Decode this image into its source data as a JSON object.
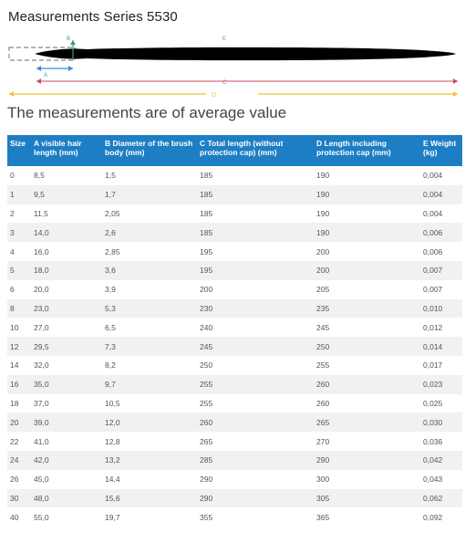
{
  "page": {
    "title": "Measurements Series 5530",
    "subtitle": "The measurements are of average value"
  },
  "diagram": {
    "labels": {
      "A": "A",
      "B": "B",
      "C": "C",
      "D": "D",
      "E": "E"
    },
    "colors": {
      "A": "#3b8ad8",
      "B": "#2ea36e",
      "C": "#d2475a",
      "D": "#f1c232",
      "brush": "#000000"
    }
  },
  "table": {
    "headers": [
      "Size",
      "A visible hair length (mm)",
      "B Diameter of the brush body (mm)",
      "C Total length (without protection cap) (mm)",
      "D Length including protection cap (mm)",
      "E Weight (kg)"
    ],
    "rows": [
      [
        "0",
        "8,5",
        "1,5",
        "185",
        "190",
        "0,004"
      ],
      [
        "1",
        "9,5",
        "1,7",
        "185",
        "190",
        "0,004"
      ],
      [
        "2",
        "11,5",
        "2,05",
        "185",
        "190",
        "0,004"
      ],
      [
        "3",
        "14,0",
        "2,6",
        "185",
        "190",
        "0,006"
      ],
      [
        "4",
        "16,0",
        "2,85",
        "195",
        "200",
        "0,006"
      ],
      [
        "5",
        "18,0",
        "3,6",
        "195",
        "200",
        "0,007"
      ],
      [
        "6",
        "20,0",
        "3,9",
        "200",
        "205",
        "0,007"
      ],
      [
        "8",
        "23,0",
        "5,3",
        "230",
        "235",
        "0,010"
      ],
      [
        "10",
        "27,0",
        "6,5",
        "240",
        "245",
        "0,012"
      ],
      [
        "12",
        "29,5",
        "7,3",
        "245",
        "250",
        "0,014"
      ],
      [
        "14",
        "32,0",
        "8,2",
        "250",
        "255",
        "0,017"
      ],
      [
        "16",
        "35,0",
        "9,7",
        "255",
        "260",
        "0,023"
      ],
      [
        "18",
        "37,0",
        "10,5",
        "255",
        "260",
        "0,025"
      ],
      [
        "20",
        "39,0",
        "12,0",
        "260",
        "265",
        "0,030"
      ],
      [
        "22",
        "41,0",
        "12,8",
        "265",
        "270",
        "0,036"
      ],
      [
        "24",
        "42,0",
        "13,2",
        "285",
        "290",
        "0,042"
      ],
      [
        "26",
        "45,0",
        "14,4",
        "290",
        "300",
        "0,043"
      ],
      [
        "30",
        "48,0",
        "15,6",
        "290",
        "305",
        "0,062"
      ],
      [
        "40",
        "55,0",
        "19,7",
        "355",
        "365",
        "0,092"
      ]
    ]
  }
}
